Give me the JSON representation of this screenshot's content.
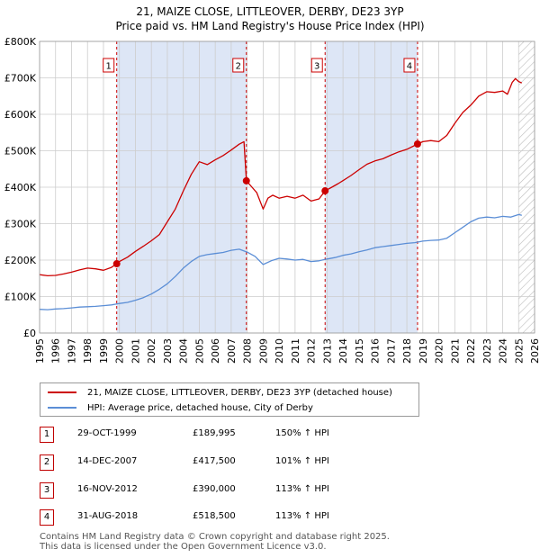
{
  "title_line1": "21, MAIZE CLOSE, LITTLEOVER, DERBY, DE23 3YP",
  "title_line2": "Price paid vs. HM Land Registry's House Price Index (HPI)",
  "colors": {
    "property": "#cc0000",
    "hpi": "#5b8ed6",
    "band": "#dde6f6",
    "grid": "#cccccc",
    "marker_border": "#cc0000"
  },
  "legend": {
    "property_label": "21, MAIZE CLOSE, LITTLEOVER, DERBY, DE23 3YP (detached house)",
    "hpi_label": "HPI: Average price, detached house, City of Derby"
  },
  "transactions": [
    {
      "num": "1",
      "date": "29-OCT-1999",
      "price": "£189,995",
      "hpi": "150% ↑ HPI"
    },
    {
      "num": "2",
      "date": "14-DEC-2007",
      "price": "£417,500",
      "hpi": "101% ↑ HPI"
    },
    {
      "num": "3",
      "date": "16-NOV-2012",
      "price": "£390,000",
      "hpi": "113% ↑ HPI"
    },
    {
      "num": "4",
      "date": "31-AUG-2018",
      "price": "£518,500",
      "hpi": "113% ↑ HPI"
    }
  ],
  "footer": {
    "line1": "Contains HM Land Registry data © Crown copyright and database right 2025.",
    "line2": "This data is licensed under the Open Government Licence v3.0."
  },
  "chart_data": {
    "type": "line",
    "xlabel": "",
    "ylabel": "",
    "xlim": [
      1995,
      2026
    ],
    "ylim": [
      0,
      800000
    ],
    "x_ticks": [
      1995,
      1996,
      1997,
      1998,
      1999,
      2000,
      2001,
      2002,
      2003,
      2004,
      2005,
      2006,
      2007,
      2008,
      2009,
      2010,
      2011,
      2012,
      2013,
      2014,
      2015,
      2016,
      2017,
      2018,
      2019,
      2020,
      2021,
      2022,
      2023,
      2024,
      2025,
      2026
    ],
    "y_ticks": [
      {
        "value": 0,
        "label": "£0"
      },
      {
        "value": 100000,
        "label": "£100K"
      },
      {
        "value": 200000,
        "label": "£200K"
      },
      {
        "value": 300000,
        "label": "£300K"
      },
      {
        "value": 400000,
        "label": "£400K"
      },
      {
        "value": 500000,
        "label": "£500K"
      },
      {
        "value": 600000,
        "label": "£600K"
      },
      {
        "value": 700000,
        "label": "£700K"
      },
      {
        "value": 800000,
        "label": "£800K"
      }
    ],
    "sale_markers": [
      {
        "label": "1",
        "x": 1999.83,
        "y": 189995
      },
      {
        "label": "2",
        "x": 2007.95,
        "y": 417500
      },
      {
        "label": "3",
        "x": 2012.88,
        "y": 390000
      },
      {
        "label": "4",
        "x": 2018.67,
        "y": 518500
      }
    ],
    "shaded_bands": [
      [
        1999.83,
        2007.95
      ],
      [
        2012.88,
        2018.67
      ]
    ],
    "hatched_region": [
      2025.0,
      2026.0
    ],
    "series": [
      {
        "name": "21, MAIZE CLOSE, LITTLEOVER, DERBY, DE23 3YP (detached house)",
        "x": [
          1995.0,
          1995.5,
          1996.0,
          1996.5,
          1997.0,
          1997.5,
          1998.0,
          1998.5,
          1999.0,
          1999.5,
          1999.83,
          2000.0,
          2000.5,
          2001.0,
          2001.5,
          2002.0,
          2002.5,
          2003.0,
          2003.5,
          2004.0,
          2004.5,
          2005.0,
          2005.5,
          2006.0,
          2006.5,
          2007.0,
          2007.5,
          2007.8,
          2007.95,
          2008.3,
          2008.6,
          2009.0,
          2009.3,
          2009.6,
          2010.0,
          2010.5,
          2011.0,
          2011.5,
          2012.0,
          2012.5,
          2012.88,
          2013.3,
          2013.7,
          2014.0,
          2014.5,
          2015.0,
          2015.5,
          2016.0,
          2016.5,
          2017.0,
          2017.5,
          2018.0,
          2018.67,
          2019.0,
          2019.5,
          2020.0,
          2020.5,
          2021.0,
          2021.5,
          2022.0,
          2022.5,
          2023.0,
          2023.5,
          2024.0,
          2024.3,
          2024.6,
          2024.8,
          2025.0,
          2025.2
        ],
        "y": [
          160000,
          157000,
          158000,
          162000,
          167000,
          173000,
          178000,
          176000,
          172000,
          180000,
          189995,
          196000,
          208000,
          224000,
          238000,
          253000,
          270000,
          305000,
          340000,
          390000,
          435000,
          470000,
          462000,
          475000,
          487000,
          502000,
          518000,
          525000,
          417500,
          400000,
          385000,
          340000,
          370000,
          378000,
          370000,
          375000,
          370000,
          378000,
          362000,
          368000,
          390000,
          400000,
          410000,
          418000,
          432000,
          448000,
          463000,
          472000,
          478000,
          488000,
          497000,
          504000,
          518500,
          525000,
          528000,
          525000,
          542000,
          575000,
          605000,
          625000,
          650000,
          662000,
          660000,
          664000,
          655000,
          688000,
          698000,
          690000,
          686000
        ]
      },
      {
        "name": "HPI: Average price, detached house, City of Derby",
        "x": [
          1995.0,
          1995.5,
          1996.0,
          1996.5,
          1997.0,
          1997.5,
          1998.0,
          1998.5,
          1999.0,
          1999.5,
          2000.0,
          2000.5,
          2001.0,
          2001.5,
          2002.0,
          2002.5,
          2003.0,
          2003.5,
          2004.0,
          2004.5,
          2005.0,
          2005.5,
          2006.0,
          2006.5,
          2007.0,
          2007.5,
          2008.0,
          2008.5,
          2009.0,
          2009.5,
          2010.0,
          2010.5,
          2011.0,
          2011.5,
          2012.0,
          2012.5,
          2013.0,
          2013.5,
          2014.0,
          2014.5,
          2015.0,
          2015.5,
          2016.0,
          2016.5,
          2017.0,
          2017.5,
          2018.0,
          2018.5,
          2019.0,
          2019.5,
          2020.0,
          2020.5,
          2021.0,
          2021.5,
          2022.0,
          2022.5,
          2023.0,
          2023.5,
          2024.0,
          2024.5,
          2025.0,
          2025.2
        ],
        "y": [
          65000,
          64000,
          66000,
          67000,
          69000,
          71000,
          72000,
          73000,
          75000,
          77000,
          81000,
          84000,
          90000,
          97000,
          107000,
          120000,
          135000,
          155000,
          178000,
          196000,
          210000,
          215000,
          218000,
          221000,
          227000,
          230000,
          222000,
          210000,
          188000,
          198000,
          205000,
          203000,
          200000,
          202000,
          196000,
          198000,
          203000,
          207000,
          213000,
          217000,
          223000,
          228000,
          234000,
          237000,
          240000,
          243000,
          246000,
          248000,
          252000,
          254000,
          255000,
          260000,
          275000,
          290000,
          305000,
          315000,
          318000,
          316000,
          320000,
          318000,
          325000,
          323000
        ]
      }
    ]
  }
}
